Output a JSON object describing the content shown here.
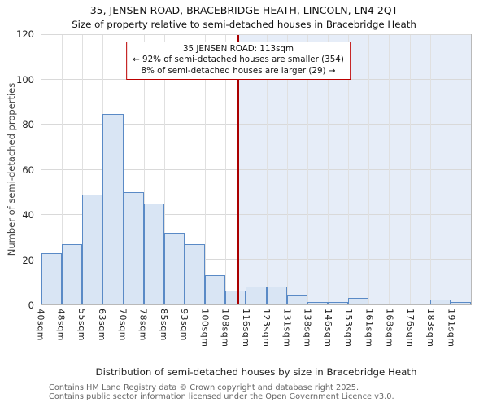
{
  "title": "35, JENSEN ROAD, BRACEBRIDGE HEATH, LINCOLN, LN4 2QT",
  "subtitle": "Size of property relative to semi-detached houses in Bracebridge Heath",
  "chart_data": {
    "type": "bar",
    "categories": [
      "40sqm",
      "48sqm",
      "55sqm",
      "63sqm",
      "70sqm",
      "78sqm",
      "85sqm",
      "93sqm",
      "100sqm",
      "108sqm",
      "116sqm",
      "123sqm",
      "131sqm",
      "138sqm",
      "146sqm",
      "153sqm",
      "161sqm",
      "168sqm",
      "176sqm",
      "183sqm",
      "191sqm"
    ],
    "values": [
      23,
      27,
      49,
      85,
      50,
      45,
      32,
      27,
      13,
      6,
      8,
      8,
      4,
      1,
      1,
      3,
      0,
      0,
      0,
      2,
      1
    ],
    "title": "35, JENSEN ROAD, BRACEBRIDGE HEATH, LINCOLN, LN4 2QT",
    "xlabel": "Distribution of semi-detached houses by size in Bracebridge Heath",
    "ylabel": "Number of semi-detached properties",
    "ylim": [
      0,
      120
    ],
    "yticks": [
      0,
      20,
      40,
      60,
      80,
      100,
      120
    ],
    "grid": true,
    "legend": "none",
    "marker": {
      "value_sqm": 113,
      "label": "35 JENSEN ROAD: 113sqm",
      "smaller_text": "← 92% of semi-detached houses are smaller (354)",
      "larger_text": "8% of semi-detached houses are larger (29) →",
      "line_color": "#aa0000",
      "box_border_color": "#bb0000"
    },
    "colors": {
      "bar_fill": "#d9e5f4",
      "bar_border": "#5a8ac6",
      "shade_fill": "#e6edf8",
      "grid": "#d9d9d9"
    }
  },
  "footer": {
    "line1": "Contains HM Land Registry data © Crown copyright and database right 2025.",
    "line2": "Contains public sector information licensed under the Open Government Licence v3.0."
  }
}
